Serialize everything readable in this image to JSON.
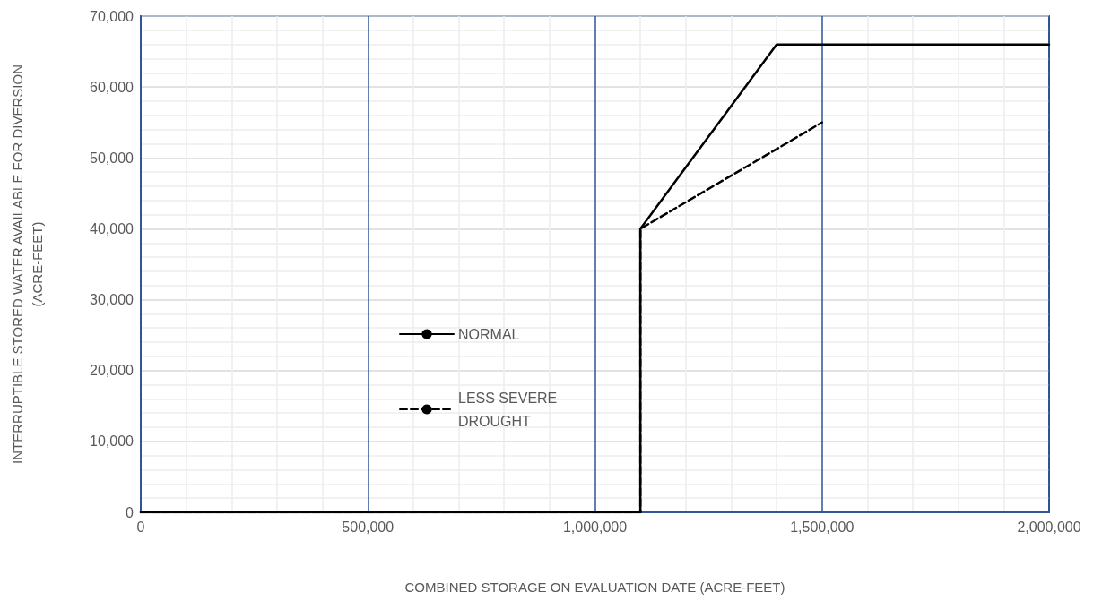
{
  "chart_data": {
    "type": "line",
    "xlabel": "COMBINED STORAGE ON EVALUATION DATE (ACRE-FEET)",
    "ylabel": "INTERRUPTIBLE STORED WATER AVAILABLE FOR DIVERSION\n(ACRE-FEET)",
    "xlim": [
      0,
      2000000
    ],
    "xticks": [
      0,
      {
        "value": 500000,
        "label": "500,000"
      },
      {
        "value": 1000000,
        "label": "1,000,000"
      },
      {
        "value": 1500000,
        "label": "1,500,000"
      },
      {
        "value": 2000000,
        "label": "2,000,000"
      }
    ],
    "ylim": [
      0,
      70000
    ],
    "yticks": [
      0,
      {
        "value": 10000,
        "label": "10,000"
      },
      {
        "value": 20000,
        "label": "20,000"
      },
      {
        "value": 30000,
        "label": "30,000"
      },
      {
        "value": 40000,
        "label": "40,000"
      },
      {
        "value": 50000,
        "label": "50,000"
      },
      {
        "value": 60000,
        "label": "60,000"
      },
      {
        "value": 70000,
        "label": "70,000"
      }
    ],
    "grid": true,
    "legend": "left",
    "marker": "none",
    "series": [
      {
        "name": "NORMAL",
        "color": "#000000",
        "line_style": "solid",
        "x": [
          0,
          1100000,
          1100000,
          1400000,
          2000000
        ],
        "values": [
          0,
          0,
          40000,
          66000,
          66000
        ]
      },
      {
        "name": "LESS SEVERE DROUGHT",
        "color": "#000000",
        "line_style": "dashed",
        "x": [
          0,
          1100000,
          1100000,
          1500000
        ],
        "values": [
          0,
          0,
          40000,
          55000
        ]
      }
    ]
  }
}
